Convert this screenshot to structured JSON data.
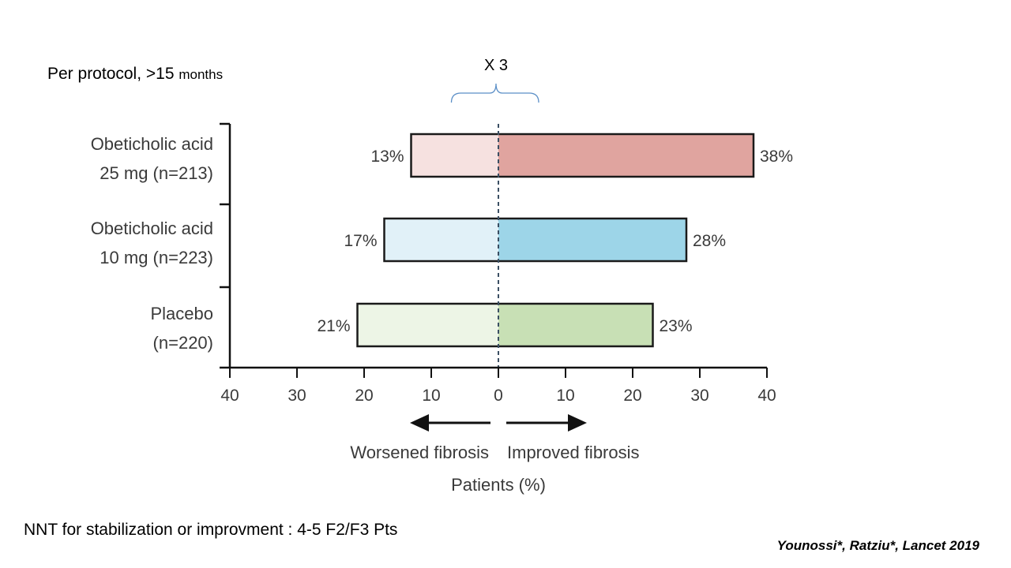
{
  "slide": {
    "subtitle_main": "Per protocol, >15",
    "subtitle_unit": "months",
    "brace_label": "X 3",
    "nnt_text": "NNT for stabilization or improvment : 4-5 F2/F3 Pts",
    "citation": "Younossi*,  Ratziu*, Lancet 2019"
  },
  "chart_data": {
    "type": "bar",
    "orientation": "horizontal-diverging",
    "categories": [
      [
        "Obeticholic acid",
        "25 mg (n=213)"
      ],
      [
        "Obeticholic acid",
        "10 mg (n=223)"
      ],
      [
        "Placebo",
        "(n=220)"
      ]
    ],
    "series": [
      {
        "name": "Worsened fibrosis",
        "direction": "left",
        "values": [
          13,
          17,
          21
        ],
        "value_labels": [
          "13%",
          "17%",
          "21%"
        ]
      },
      {
        "name": "Improved fibrosis",
        "direction": "right",
        "values": [
          38,
          28,
          23
        ],
        "value_labels": [
          "38%",
          "28%",
          "23%"
        ]
      }
    ],
    "colors": {
      "worsened": [
        "#f6e1e0",
        "#e1f1f8",
        "#edf5e6"
      ],
      "improved": [
        "#e0a49f",
        "#9dd5e8",
        "#c8e0b5"
      ],
      "center_line": "#3b4f63",
      "brace": "#5b8fc7"
    },
    "xlim": [
      -40,
      40
    ],
    "xticks": [
      -40,
      -30,
      -20,
      -10,
      0,
      10,
      20,
      30,
      40
    ],
    "xtick_labels": [
      "40",
      "30",
      "20",
      "10",
      "0",
      "10",
      "20",
      "30",
      "40"
    ],
    "xlabel": "Patients (%)",
    "arrow_labels": {
      "left": "Worsened fibrosis",
      "right": "Improved fibrosis"
    },
    "brace_span": [
      -7,
      6
    ],
    "grid": false
  }
}
